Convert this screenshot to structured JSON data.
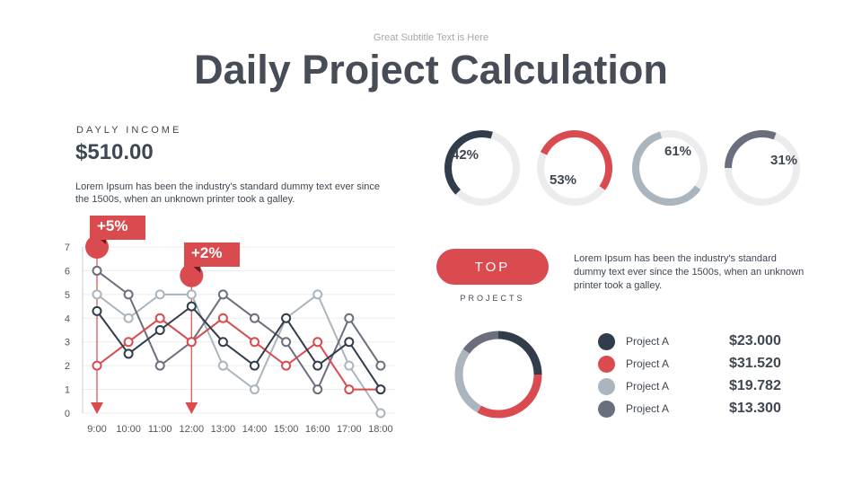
{
  "header": {
    "subtitle": "Great Subtitle Text is Here",
    "title": "Daily Project Calculation"
  },
  "income": {
    "label": "DAYLY INCOME",
    "value": "$510.00",
    "description": "Lorem Ipsum has been the industry's standard dummy text ever since the 1500s, when an unknown printer took a galley."
  },
  "rings": [
    {
      "label": "42%",
      "value": 42,
      "color": "#323d4c"
    },
    {
      "label": "53%",
      "value": 53,
      "color": "#d94b4f"
    },
    {
      "label": "61%",
      "value": 61,
      "color": "#aab5be"
    },
    {
      "label": "31%",
      "value": 31,
      "color": "#6b6e7c"
    }
  ],
  "top": {
    "button": "TOP",
    "label": "PROJECTS",
    "description": "Lorem Ipsum has been the industry's standard dummy text ever since the 1500s, when an unknown printer took a galley."
  },
  "legend": [
    {
      "name": "Project A",
      "amount": "$23.000",
      "color": "#323d4c"
    },
    {
      "name": "Project A",
      "amount": "$31.520",
      "color": "#d94b4f"
    },
    {
      "name": "Project A",
      "amount": "$19.782",
      "color": "#aab5be"
    },
    {
      "name": "Project A",
      "amount": "$13.300",
      "color": "#6b6e7c"
    }
  ],
  "callouts": [
    {
      "text": "+5%",
      "at": "9:00",
      "y": 7
    },
    {
      "text": "+2%",
      "at": "12:00",
      "y": 5.8
    }
  ],
  "chart_data": {
    "type": "line",
    "categories": [
      "9:00",
      "10:00",
      "11:00",
      "12:00",
      "13:00",
      "14:00",
      "15:00",
      "16:00",
      "17:00",
      "18:00"
    ],
    "ylim": [
      0,
      7
    ],
    "yticks": [
      "0",
      "1",
      "2",
      "3",
      "4",
      "5",
      "6",
      "7"
    ],
    "grid": true,
    "series": [
      {
        "name": "Project A (navy)",
        "color": "#323d4c",
        "values": [
          4.3,
          2.5,
          3.5,
          4.5,
          3,
          2,
          4,
          2,
          3,
          1
        ]
      },
      {
        "name": "Project A (red)",
        "color": "#d94b4f",
        "values": [
          2,
          3,
          4,
          3,
          4,
          3,
          2,
          3,
          1,
          1
        ]
      },
      {
        "name": "Project A (light)",
        "color": "#aab5be",
        "values": [
          5,
          4,
          5,
          5,
          2,
          1,
          4,
          5,
          2,
          0
        ]
      },
      {
        "name": "Project A (gray)",
        "color": "#6b6e7c",
        "values": [
          6,
          5,
          2,
          3,
          5,
          4,
          3,
          1,
          4,
          2
        ]
      }
    ]
  }
}
